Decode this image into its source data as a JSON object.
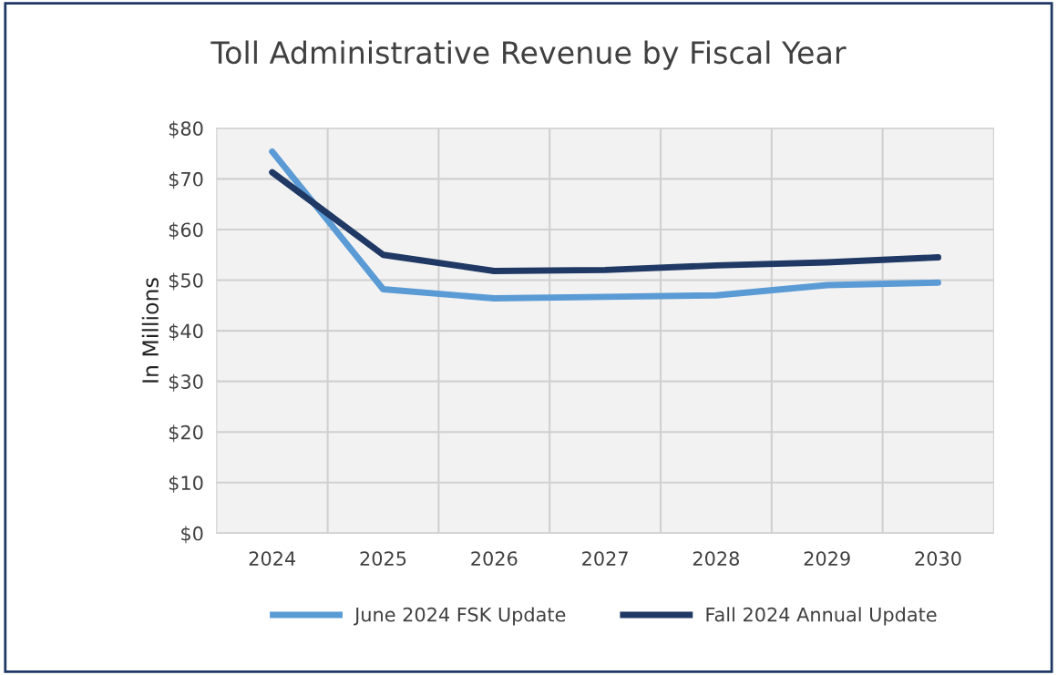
{
  "chart_data": {
    "type": "line",
    "title": "Toll Administrative Revenue by Fiscal Year",
    "ylabel": "In Millions",
    "categories": [
      "2024",
      "2025",
      "2026",
      "2027",
      "2028",
      "2029",
      "2030"
    ],
    "series": [
      {
        "name": "June 2024 FSK Update",
        "color": "#5b9bd5",
        "values": [
          75.4,
          48.2,
          46.4,
          46.7,
          47,
          49,
          49.5
        ]
      },
      {
        "name": "Fall 2024 Annual Update",
        "color": "#1f3864",
        "values": [
          71.3,
          55,
          51.8,
          52,
          52.9,
          53.5,
          54.5
        ]
      }
    ],
    "ylim": [
      0,
      80
    ],
    "yticks": [
      {
        "value": 0,
        "label": "$0"
      },
      {
        "value": 10,
        "label": "$10"
      },
      {
        "value": 20,
        "label": "$20"
      },
      {
        "value": 30,
        "label": "$30"
      },
      {
        "value": 40,
        "label": "$40"
      },
      {
        "value": 50,
        "label": "$50"
      },
      {
        "value": 60,
        "label": "$60"
      },
      {
        "value": 70,
        "label": "$70"
      },
      {
        "value": 80,
        "label": "$80"
      }
    ],
    "grid": true,
    "legend": "bottom",
    "marker": "none",
    "line_style": "solid"
  }
}
